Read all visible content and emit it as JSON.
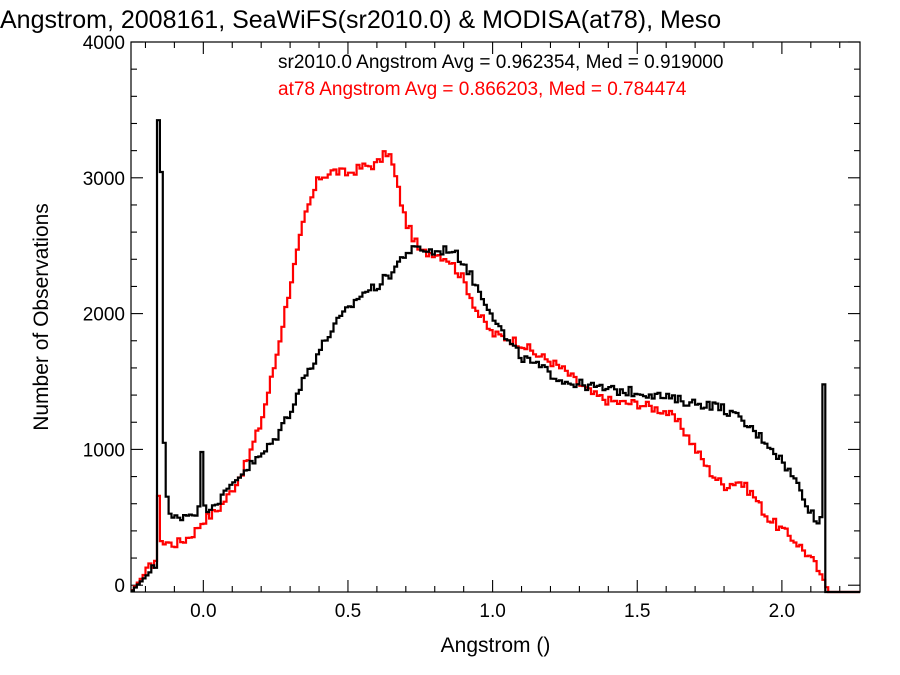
{
  "chart_data": {
    "type": "line",
    "title": "Angstrom, 2008161, SeaWiFS(sr2010.0) & MODISA(at78), Meso",
    "xlabel": "Angstrom ()",
    "ylabel": "Number of Observations",
    "xlim": [
      -0.25,
      2.27
    ],
    "ylim": [
      -50,
      4000
    ],
    "grid": false,
    "x_ticks": [
      0.0,
      0.5,
      1.0,
      1.5,
      2.0
    ],
    "x_tick_labels": [
      "0.0",
      "0.5",
      "1.0",
      "1.5",
      "2.0"
    ],
    "y_ticks": [
      0,
      1000,
      2000,
      3000,
      4000
    ],
    "y_tick_labels": [
      "0",
      "1000",
      "2000",
      "3000",
      "4000"
    ],
    "legend_position": "top-right",
    "series": [
      {
        "name": "sr2010.0",
        "color": "#000000",
        "label": "sr2010.0 Angstrom Avg = 0.962354, Med = 0.919000",
        "x": [
          -0.25,
          -0.16,
          -0.155,
          -0.15,
          -0.145,
          -0.14,
          -0.135,
          -0.13,
          -0.125,
          -0.12,
          -0.11,
          -0.09,
          -0.06,
          -0.03,
          -0.01,
          -0.005,
          0.0,
          0.005,
          0.02,
          0.05,
          0.08,
          0.1,
          0.13,
          0.16,
          0.2,
          0.25,
          0.3,
          0.35,
          0.4,
          0.45,
          0.5,
          0.55,
          0.6,
          0.65,
          0.7,
          0.75,
          0.8,
          0.85,
          0.9,
          0.95,
          1.0,
          1.05,
          1.1,
          1.15,
          1.2,
          1.25,
          1.3,
          1.35,
          1.4,
          1.45,
          1.5,
          1.55,
          1.6,
          1.65,
          1.7,
          1.75,
          1.8,
          1.85,
          1.9,
          1.95,
          2.0,
          2.05,
          2.08,
          2.1,
          2.12,
          2.13,
          2.14,
          2.145,
          2.15,
          2.155,
          2.27
        ],
        "y": [
          -50,
          150,
          3430,
          2550,
          3070,
          2150,
          1050,
          800,
          650,
          520,
          490,
          500,
          520,
          540,
          560,
          1000,
          550,
          560,
          580,
          620,
          680,
          750,
          820,
          880,
          950,
          1080,
          1280,
          1530,
          1720,
          1900,
          2030,
          2150,
          2200,
          2300,
          2450,
          2480,
          2450,
          2480,
          2380,
          2180,
          2000,
          1800,
          1680,
          1620,
          1560,
          1500,
          1480,
          1460,
          1440,
          1430,
          1420,
          1410,
          1380,
          1360,
          1340,
          1330,
          1300,
          1230,
          1140,
          1050,
          920,
          760,
          640,
          540,
          480,
          420,
          600,
          1480,
          0,
          -50,
          -50
        ]
      },
      {
        "name": "at78",
        "color": "#ff0000",
        "label": "at78 Angstrom Avg = 0.866203, Med = 0.784474",
        "x": [
          -0.25,
          -0.16,
          -0.155,
          -0.15,
          -0.14,
          -0.13,
          -0.11,
          -0.09,
          -0.06,
          -0.03,
          0.0,
          0.03,
          0.06,
          0.1,
          0.15,
          0.2,
          0.25,
          0.3,
          0.35,
          0.4,
          0.45,
          0.5,
          0.55,
          0.6,
          0.62,
          0.64,
          0.66,
          0.7,
          0.75,
          0.8,
          0.85,
          0.9,
          0.95,
          1.0,
          1.05,
          1.1,
          1.15,
          1.2,
          1.25,
          1.3,
          1.35,
          1.4,
          1.45,
          1.5,
          1.55,
          1.6,
          1.65,
          1.7,
          1.75,
          1.8,
          1.85,
          1.9,
          1.95,
          2.0,
          2.05,
          2.1,
          2.13,
          2.15,
          2.16,
          2.27
        ],
        "y": [
          -50,
          200,
          630,
          400,
          300,
          320,
          300,
          310,
          340,
          390,
          480,
          520,
          580,
          700,
          900,
          1200,
          1650,
          2200,
          2700,
          3000,
          3050,
          3030,
          3080,
          3100,
          3150,
          3200,
          3050,
          2680,
          2450,
          2450,
          2400,
          2250,
          2000,
          1850,
          1820,
          1780,
          1700,
          1650,
          1580,
          1480,
          1400,
          1360,
          1340,
          1340,
          1310,
          1280,
          1180,
          1010,
          840,
          730,
          770,
          670,
          500,
          410,
          320,
          200,
          100,
          20,
          -50,
          -50
        ]
      }
    ]
  }
}
